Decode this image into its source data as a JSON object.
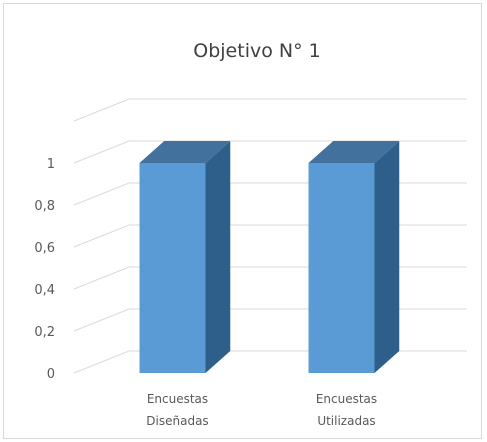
{
  "chart_data": {
    "type": "bar",
    "title": "Objetivo N° 1",
    "categories": [
      [
        "Encuestas",
        "Diseñadas"
      ],
      [
        "Encuestas",
        "Utilizadas"
      ]
    ],
    "series": [
      {
        "values": [
          1,
          1
        ]
      }
    ],
    "yticks": [
      "0",
      "0,2",
      "0,4",
      "0,6",
      "0,8",
      "1"
    ],
    "ylim": [
      0,
      1.2
    ],
    "grid": true,
    "legend": "none",
    "style": "3d-column",
    "colors": {
      "front": "#5b9bd5",
      "top": "#41719c",
      "side": "#2e5f8a",
      "grid": "#d9d9d9"
    }
  }
}
